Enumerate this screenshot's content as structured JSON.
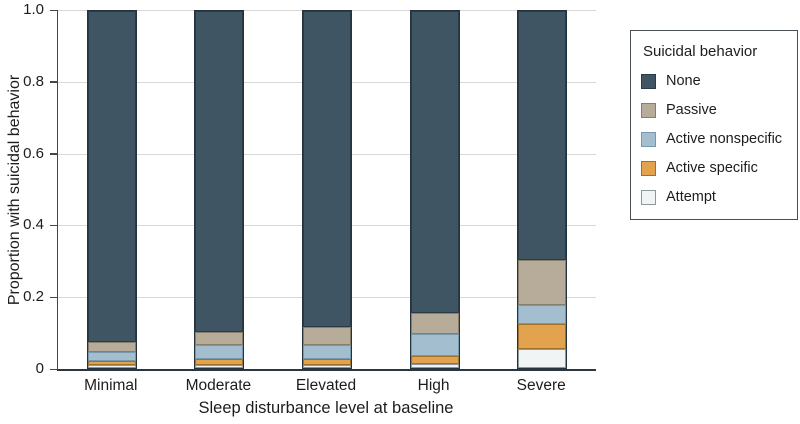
{
  "chart_data": {
    "type": "bar",
    "stacked": true,
    "xlabel": "Sleep disturbance level at baseline",
    "ylabel": "Proportion with suicidal behavior",
    "categories": [
      "Minimal",
      "Moderate",
      "Elevated",
      "High",
      "Severe"
    ],
    "y_ticks": [
      "0",
      "0.2",
      "0.4",
      "0.6",
      "0.8",
      "1.0"
    ],
    "ylim": [
      0,
      1.0
    ],
    "grid": "horizontal",
    "legend_title": "Suicidal behavior",
    "legend_position": "right",
    "series": [
      {
        "name": "None",
        "color": "#3f5564",
        "border": "#2b3b46",
        "values": [
          0.928,
          0.9,
          0.885,
          0.845,
          0.698
        ]
      },
      {
        "name": "Passive",
        "color": "#b7ac99",
        "border": "#877e6c",
        "values": [
          0.028,
          0.036,
          0.05,
          0.061,
          0.125
        ]
      },
      {
        "name": "Active nonspecific",
        "color": "#a3bfcf",
        "border": "#7699ad",
        "values": [
          0.025,
          0.039,
          0.039,
          0.061,
          0.053
        ]
      },
      {
        "name": "Active specific",
        "color": "#e2a24e",
        "border": "#9e722b",
        "values": [
          0.011,
          0.017,
          0.019,
          0.022,
          0.072
        ]
      },
      {
        "name": "Attempt",
        "color": "#f1f4f5",
        "border": "#8d979c",
        "values": [
          0.008,
          0.008,
          0.007,
          0.011,
          0.052
        ]
      }
    ]
  }
}
